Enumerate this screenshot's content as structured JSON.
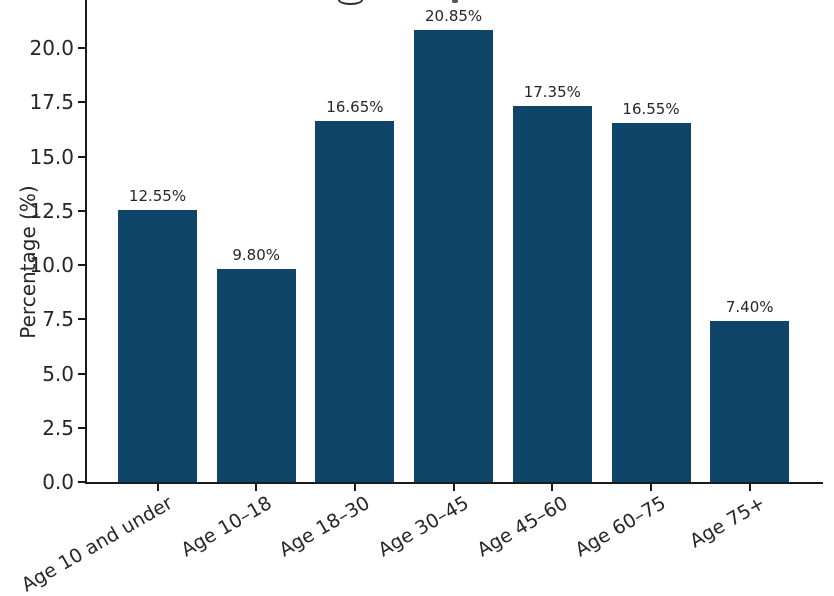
{
  "chart_data": {
    "type": "bar",
    "title_note": "title clipped by top edge of screenshot; only letter descender fragments visible",
    "categories": [
      "Age 10 and under",
      "Age 10–18",
      "Age 18–30",
      "Age 30–45",
      "Age 45–60",
      "Age 60–75",
      "Age 75+"
    ],
    "values": [
      12.55,
      9.8,
      16.65,
      20.85,
      17.35,
      16.55,
      7.4
    ],
    "bar_labels": [
      "12.55%",
      "9.80%",
      "16.65%",
      "20.85%",
      "17.35%",
      "16.55%",
      "7.40%"
    ],
    "ylabel": "Percentage (%)",
    "xlabel": "",
    "ytick_labels": [
      "0.0",
      "2.5",
      "5.0",
      "7.5",
      "10.0",
      "12.5",
      "15.0",
      "17.5",
      "20.0"
    ],
    "ytick_values": [
      0,
      2.5,
      5,
      7.5,
      10,
      12.5,
      15,
      17.5,
      20
    ],
    "ylim": [
      0,
      22.2
    ],
    "grid": false,
    "legend_position": "none",
    "xtick_rotation_deg": 30,
    "bar_color": "#0e4569",
    "text_color": "#262626",
    "axis_color": "#1a1a1a"
  }
}
